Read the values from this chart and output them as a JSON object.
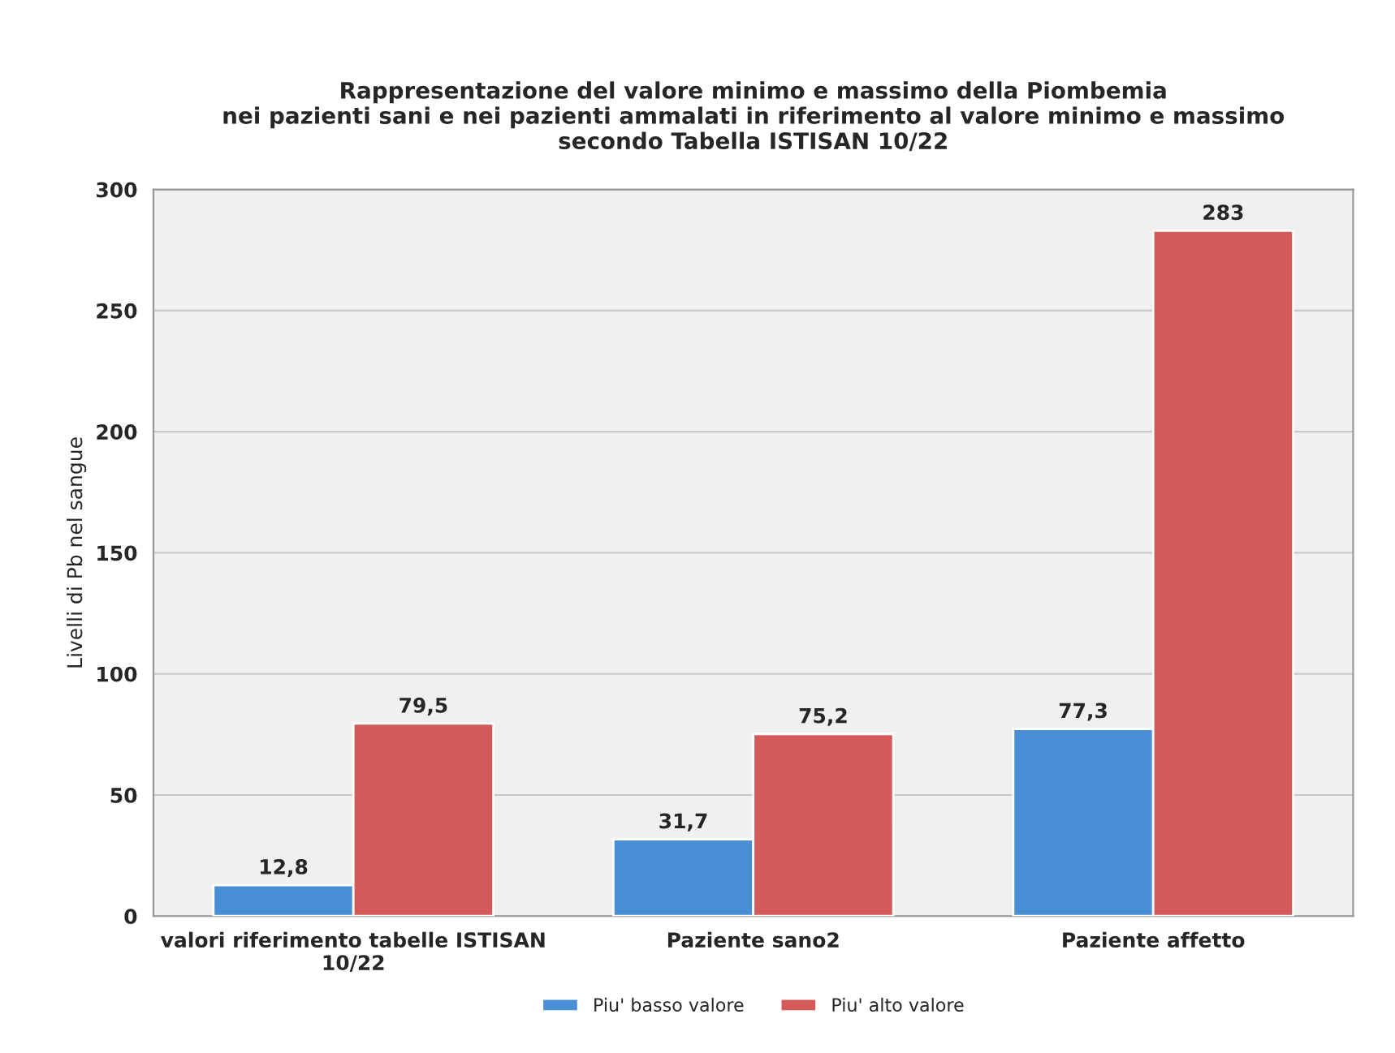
{
  "chart_data": {
    "type": "bar",
    "title": "Rappresentazione del valore minimo e massimo della Piombemia\nnei pazienti sani e nei pazienti ammalati in riferimento al valore minimo e massimo\nsecondo Tabella ISTISAN 10/22",
    "ylabel": "Livelli di Pb nel sangue",
    "categories": [
      "valori riferimento tabelle ISTISAN\n10/22",
      "Paziente sano2",
      "Paziente affetto"
    ],
    "series": [
      {
        "name": "Piu' basso valore",
        "color": "#4a8fd6",
        "values": [
          12.8,
          31.7,
          77.3
        ],
        "value_labels": [
          "12,8",
          "31,7",
          "77,3"
        ]
      },
      {
        "name": "Piu' alto valore",
        "color": "#d45a5a",
        "values": [
          79.5,
          75.2,
          283
        ],
        "value_labels": [
          "79,5",
          "75,2",
          "283"
        ]
      }
    ],
    "ylim": [
      0,
      300
    ],
    "yticks": [
      0,
      50,
      100,
      150,
      200,
      250,
      300
    ],
    "grid": "y",
    "legend": "bottom"
  }
}
